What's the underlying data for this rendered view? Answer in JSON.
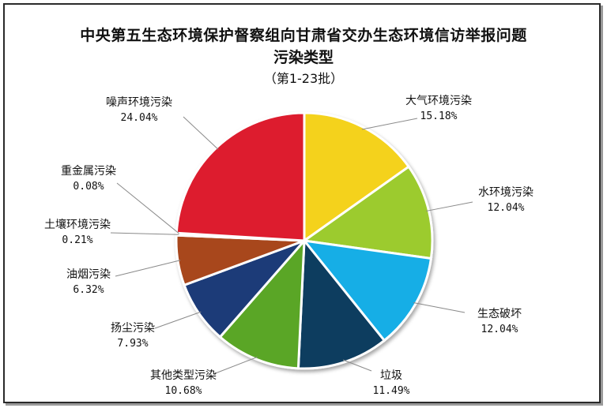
{
  "chart_data": {
    "type": "pie",
    "title": "中央第五生态环境保护督察组向甘肃省交办生态环境信访举报问题",
    "subtitle": "污染类型",
    "note": "（第1-23批）",
    "start_angle_deg": 0,
    "direction": "clockwise",
    "slices": [
      {
        "name": "大气环境污染",
        "value": 15.18,
        "label": "15.18%",
        "color": "#f4d21a"
      },
      {
        "name": "水环境污染",
        "value": 12.04,
        "label": "12.04%",
        "color": "#9ccb2e"
      },
      {
        "name": "生态破坏",
        "value": 12.04,
        "label": "12.04%",
        "color": "#19aee6"
      },
      {
        "name": "垃圾",
        "value": 11.49,
        "label": "11.49%",
        "color": "#0f3d5f"
      },
      {
        "name": "其他类型污染",
        "value": 10.68,
        "label": "10.68%",
        "color": "#5aa627"
      },
      {
        "name": "扬尘污染",
        "value": 7.93,
        "label": "7.93%",
        "color": "#1c3a78"
      },
      {
        "name": "油烟污染",
        "value": 6.32,
        "label": "6.32%",
        "color": "#a8471c"
      },
      {
        "name": "土壤环境污染",
        "value": 0.21,
        "label": "0.21%",
        "color": "#7a7a7a"
      },
      {
        "name": "重金属污染",
        "value": 0.08,
        "label": "0.08%",
        "color": "#555555"
      },
      {
        "name": "噪声环境污染",
        "value": 24.04,
        "label": "24.04%",
        "color": "#dd1f2f"
      }
    ]
  }
}
